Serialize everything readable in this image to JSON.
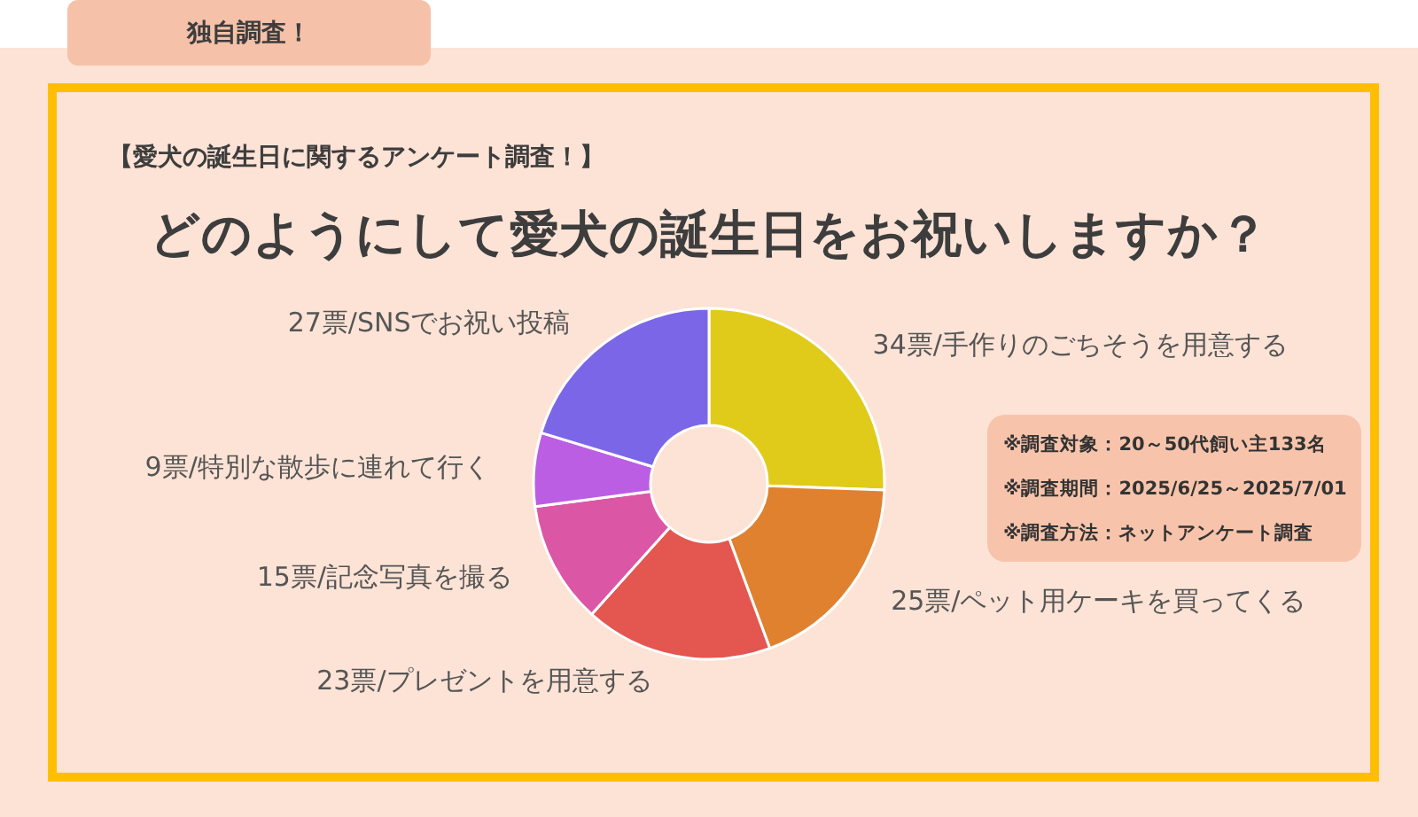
{
  "chart_data": {
    "type": "donut",
    "title": "どのようにして愛犬の誕生日をお祝いしますか？",
    "subtitle": "【愛犬の誕生日に関するアンケート調査！】",
    "categories": [
      "34票/手作りのごちそうを用意する",
      "25票/ペット用ケーキを買ってくる",
      "23票/プレゼントを用意する",
      "15票/記念写真を撮る",
      "9票/特別な散歩に連れて行く",
      "27票/SNSでお祝い投稿"
    ],
    "values": [
      34,
      25,
      23,
      15,
      9,
      27
    ],
    "colors": [
      "#e0cb1a",
      "#e0812f",
      "#e45650",
      "#dc56a6",
      "#bb5ee3",
      "#7b66e8"
    ],
    "annotations": [
      "独自調査！",
      "※調査対象：20～50代飼い主133名",
      "※調査期間：2025/6/25～2025/7/01",
      "※調査方法：ネットアンケート調査"
    ]
  }
}
